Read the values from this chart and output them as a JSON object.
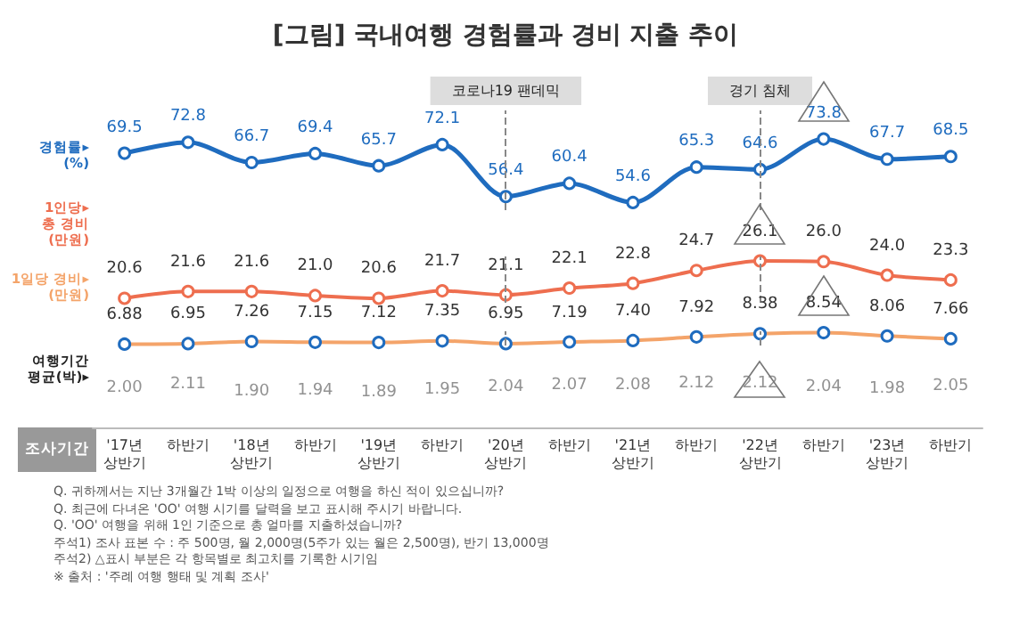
{
  "chart_data": [
    {
      "type": "line",
      "title": "[그림] 국내여행 경험률과 경비 지출 추이",
      "ylabel": "경험률▸\n(%)",
      "categories": [
        "'17년 상반기",
        "하반기",
        "'18년 상반기",
        "하반기",
        "'19년 상반기",
        "하반기",
        "'20년 상반기",
        "하반기",
        "'21년 상반기",
        "하반기",
        "'22년 상반기",
        "하반기",
        "'23년 상반기",
        "하반기"
      ],
      "series": [
        {
          "color": "#1f6cbf",
          "values": [
            69.5,
            72.8,
            66.7,
            69.4,
            65.7,
            72.1,
            56.4,
            60.4,
            54.6,
            65.3,
            64.6,
            73.8,
            67.7,
            68.5
          ],
          "value_labels": [
            "69.5",
            "72.8",
            "66.7",
            "69.4",
            "65.7",
            "72.1",
            "56.4",
            "60.4",
            "54.6",
            "65.3",
            "64.6",
            "73.8",
            "67.7",
            "68.5"
          ]
        }
      ],
      "marker": "circle",
      "tick_labels": false,
      "ref_lines": [
        {
          "axis": "x",
          "value": "'20년 상반기",
          "label": "코로나19 팬데믹"
        },
        {
          "axis": "x",
          "value": "'22년 상반기",
          "label": "경기 침체"
        }
      ]
    },
    {
      "type": "line",
      "ylabel": "1인당▸\n총 경비\n(만원)",
      "categories": [
        "'17년 상반기",
        "하반기",
        "'18년 상반기",
        "하반기",
        "'19년 상반기",
        "하반기",
        "'20년 상반기",
        "하반기",
        "'21년 상반기",
        "하반기",
        "'22년 상반기",
        "하반기",
        "'23년 상반기",
        "하반기"
      ],
      "series": [
        {
          "color": "#ee6e4f",
          "values": [
            20.6,
            21.6,
            21.6,
            21.0,
            20.6,
            21.7,
            21.1,
            22.1,
            22.8,
            24.7,
            26.1,
            26.0,
            24.0,
            23.3
          ],
          "value_labels": [
            "20.6",
            "21.6",
            "21.6",
            "21.0",
            "20.6",
            "21.7",
            "21.1",
            "22.1",
            "22.8",
            "24.7",
            "26.1",
            "26.0",
            "24.0",
            "23.3"
          ]
        }
      ],
      "marker": "circle",
      "tick_labels": false,
      "ref_lines": [
        {
          "axis": "x",
          "value": "'20년 상반기"
        },
        {
          "axis": "x",
          "value": "'22년 상반기"
        }
      ]
    },
    {
      "type": "line",
      "ylabel": "1일당 경비▸\n(만원)",
      "xlabel": "조사기간",
      "categories": [
        "'17년 상반기",
        "하반기",
        "'18년 상반기",
        "하반기",
        "'19년 상반기",
        "하반기",
        "'20년 상반기",
        "하반기",
        "'21년 상반기",
        "하반기",
        "'22년 상반기",
        "하반기",
        "'23년 상반기",
        "하반기"
      ],
      "series": [
        {
          "color": "#f4a46a",
          "values": [
            6.88,
            6.95,
            7.26,
            7.15,
            7.12,
            7.35,
            6.95,
            7.19,
            7.4,
            7.92,
            8.38,
            8.54,
            8.06,
            7.66
          ],
          "value_labels": [
            "6.88",
            "6.95",
            "7.26",
            "7.15",
            "7.12",
            "7.35",
            "6.95",
            "7.19",
            "7.40",
            "7.92",
            "8.38",
            "8.54",
            "8.06",
            "7.66"
          ]
        }
      ],
      "marker": "circle",
      "tick_labels": "x",
      "ref_lines": [
        {
          "axis": "x",
          "value": "'20년 상반기"
        },
        {
          "axis": "x",
          "value": "'22년 상반기"
        }
      ]
    },
    {
      "type": "other",
      "ylabel": "여행기간\n평균(박)▸",
      "values": [
        2.0,
        2.11,
        1.9,
        1.94,
        1.89,
        1.95,
        2.04,
        2.07,
        2.08,
        2.12,
        2.12,
        2.04,
        1.98,
        2.05
      ],
      "value_labels": [
        "2.00",
        "2.11",
        "1.90",
        "1.94",
        "1.89",
        "1.95",
        "2.04",
        "2.07",
        "2.08",
        "2.12",
        "2.12",
        "2.04",
        "1.98",
        "2.05"
      ],
      "annotations": [
        "Q. 귀하께서는 지난 3개월간 1박 이상의 일정으로 여행을 하신 적이 있으십니까?",
        "Q. 최근에 다녀온 'OO' 여행 시기를 달력을 보고 표시해 주시기 바랍니다.",
        "Q. 'OO' 여행을 위해 1인 기준으로 총 얼마를 지출하셨습니까?",
        "주석1) 조사 표본 수 : 주 500명, 월 2,000명(5주가 있는 월은 2,500명), 반기 13,000명",
        "주석2) △표시 부분은 각 항목별로 최고치를 기록한 시기임",
        "※ 출처 : '주례 여행 행태 및 계획 조사'"
      ]
    }
  ]
}
